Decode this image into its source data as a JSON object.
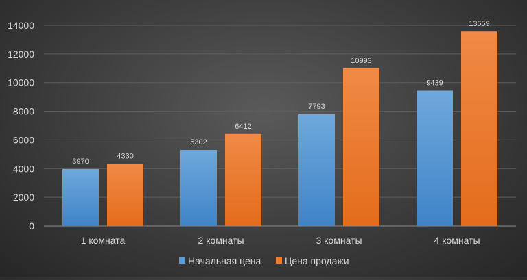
{
  "chart_data": {
    "type": "bar",
    "title": "",
    "xlabel": "",
    "ylabel": "",
    "categories": [
      "1 комната",
      "2 комнаты",
      "3 комнаты",
      "4 комнаты"
    ],
    "series": [
      {
        "name": "Начальная цена",
        "values": [
          3970,
          5302,
          7793,
          9439
        ],
        "color": "#5b9bd5"
      },
      {
        "name": "Цена продажи",
        "values": [
          4330,
          6412,
          10993,
          13559
        ],
        "color": "#ed7d31"
      }
    ],
    "ylim": [
      0,
      14000
    ],
    "yticks": [
      "0",
      "2000",
      "4000",
      "6000",
      "8000",
      "10000",
      "12000",
      "14000"
    ],
    "grid": true,
    "legend_position": "bottom",
    "data_labels": true
  }
}
